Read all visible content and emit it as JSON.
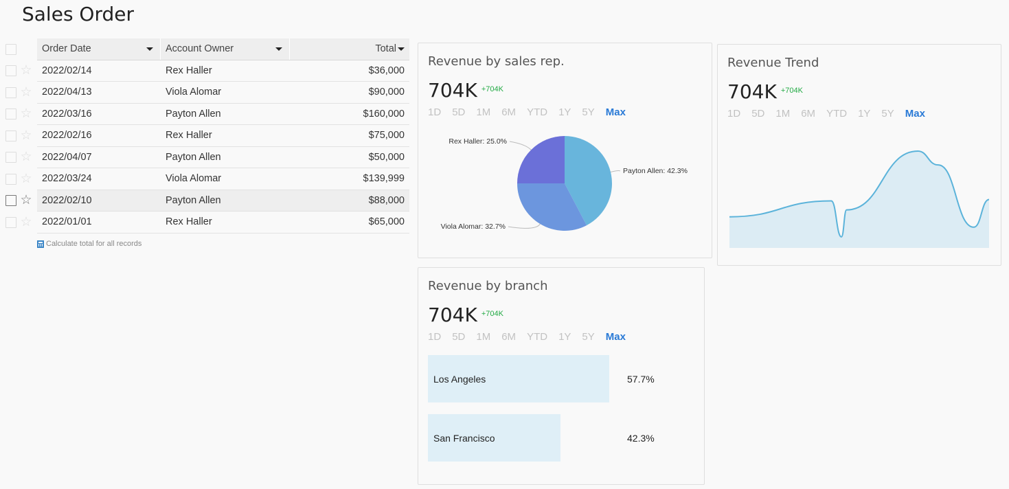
{
  "page": {
    "title": "Sales Order"
  },
  "table": {
    "columns": {
      "date": "Order Date",
      "owner": "Account Owner",
      "total": "Total"
    },
    "rows": [
      {
        "date": "2022/02/14",
        "owner": "Rex Haller",
        "total": "$36,000"
      },
      {
        "date": "2022/04/13",
        "owner": "Viola Alomar",
        "total": "$90,000"
      },
      {
        "date": "2022/03/16",
        "owner": "Payton Allen",
        "total": "$160,000"
      },
      {
        "date": "2022/02/16",
        "owner": "Rex Haller",
        "total": "$75,000"
      },
      {
        "date": "2022/04/07",
        "owner": "Payton Allen",
        "total": "$50,000"
      },
      {
        "date": "2022/03/24",
        "owner": "Viola Alomar",
        "total": "$139,999"
      },
      {
        "date": "2022/02/10",
        "owner": "Payton Allen",
        "total": "$88,000"
      },
      {
        "date": "2022/01/01",
        "owner": "Rex Haller",
        "total": "$65,000"
      }
    ],
    "calc_link": "Calculate total for all records"
  },
  "ranges": [
    "1D",
    "5D",
    "1M",
    "6M",
    "YTD",
    "1Y",
    "5Y",
    "Max"
  ],
  "active_range": "Max",
  "cards": {
    "sales_rep": {
      "title": "Revenue by sales rep.",
      "value": "704K",
      "delta": "+704K"
    },
    "trend": {
      "title": "Revenue Trend",
      "value": "704K",
      "delta": "+704K"
    },
    "branch": {
      "title": "Revenue by branch",
      "value": "704K",
      "delta": "+704K"
    }
  },
  "colors": {
    "accent": "#2a7ad6",
    "positive": "#22aa44",
    "pie_payton": "#68b5dc",
    "pie_viola": "#6c96de",
    "pie_rex": "#6b70d8",
    "trend_line": "#5bb3da",
    "trend_fill": "#dcecf4",
    "bar_fill": "#dfeff7"
  },
  "chart_data": [
    {
      "type": "pie",
      "slices": [
        {
          "label": "Payton Allen",
          "value": 42.3,
          "text": "Payton Allen: 42.3%"
        },
        {
          "label": "Viola Alomar",
          "value": 32.7,
          "text": "Viola Alomar: 32.7%"
        },
        {
          "label": "Rex Haller",
          "value": 25.0,
          "text": "Rex Haller: 25.0%"
        }
      ]
    },
    {
      "type": "area",
      "x": [
        "2022/01/01",
        "2022/02/10",
        "2022/02/14",
        "2022/02/16",
        "2022/03/16",
        "2022/03/24",
        "2022/04/07",
        "2022/04/13"
      ],
      "y": [
        65000,
        88000,
        36000,
        75000,
        160000,
        139999,
        50000,
        90000
      ],
      "grid": false,
      "axes": false
    },
    {
      "type": "bar",
      "orientation": "horizontal",
      "categories": [
        "Los Angeles",
        "San Francisco"
      ],
      "values": [
        57.7,
        42.3
      ],
      "labels": [
        "57.7%",
        "42.3%"
      ]
    }
  ]
}
